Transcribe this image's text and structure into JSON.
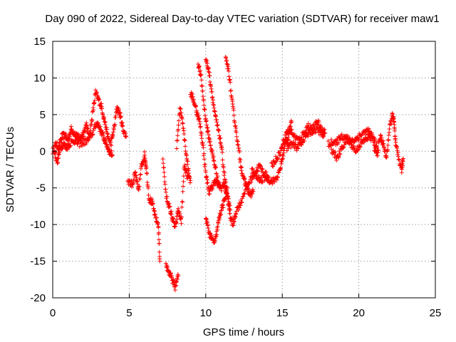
{
  "chart_data": {
    "type": "scatter",
    "title": "Day 090 of 2022, Sidereal Day-to-day VTEC variation (SDTVAR) for receiver maw1",
    "xlabel": "GPS time / hours",
    "ylabel": "SDTVAR / TECUs",
    "xlim": [
      0,
      25
    ],
    "ylim": [
      -20,
      15
    ],
    "xticks": [
      "0",
      "5",
      "10",
      "15",
      "20",
      "25"
    ],
    "yticks": [
      "-20",
      "-15",
      "-10",
      "-5",
      "0",
      "5",
      "10",
      "15"
    ],
    "grid": true,
    "marker": "+",
    "color": "#ff0000",
    "series": [
      {
        "name": "SDTVAR (approximate traces read from plot)",
        "segments": [
          [
            [
              0.0,
              0.0
            ],
            [
              0.2,
              1.0
            ],
            [
              0.4,
              0.5
            ],
            [
              0.6,
              2.0
            ],
            [
              0.8,
              2.2
            ],
            [
              1.0,
              1.5
            ],
            [
              1.2,
              3.0
            ],
            [
              1.4,
              2.5
            ],
            [
              1.6,
              2.0
            ],
            [
              1.8,
              1.8
            ],
            [
              2.0,
              2.5
            ],
            [
              2.2,
              3.5
            ],
            [
              2.4,
              2.0
            ],
            [
              2.6,
              5.0
            ],
            [
              2.8,
              8.0
            ],
            [
              3.0,
              7.0
            ],
            [
              3.2,
              6.0
            ],
            [
              3.4,
              4.0
            ],
            [
              3.6,
              2.0
            ],
            [
              3.8,
              1.0
            ],
            [
              4.0,
              3.0
            ],
            [
              4.2,
              6.0
            ],
            [
              4.4,
              5.0
            ],
            [
              4.6,
              3.0
            ],
            [
              4.8,
              2.0
            ]
          ],
          [
            [
              0.1,
              0.0
            ],
            [
              0.3,
              -1.5
            ],
            [
              0.5,
              0.5
            ],
            [
              0.7,
              1.0
            ],
            [
              0.9,
              0.5
            ],
            [
              1.1,
              1.0
            ],
            [
              1.4,
              1.5
            ],
            [
              1.7,
              1.0
            ],
            [
              2.0,
              1.2
            ],
            [
              2.3,
              1.5
            ],
            [
              2.6,
              2.5
            ],
            [
              2.9,
              4.0
            ],
            [
              3.1,
              3.0
            ],
            [
              3.3,
              2.0
            ],
            [
              3.5,
              1.0
            ],
            [
              3.7,
              0.0
            ],
            [
              3.9,
              -0.5
            ]
          ],
          [
            [
              4.9,
              -4.0
            ],
            [
              5.2,
              -4.5
            ],
            [
              5.4,
              -3.0
            ],
            [
              5.6,
              -5.5
            ],
            [
              5.8,
              -2.0
            ],
            [
              6.0,
              -0.5
            ],
            [
              6.1,
              -2.0
            ],
            [
              6.3,
              -6.5
            ],
            [
              6.5,
              -7.0
            ],
            [
              6.7,
              -9.0
            ],
            [
              6.9,
              -10.0
            ],
            [
              7.0,
              -15.0
            ]
          ],
          [
            [
              7.2,
              -1.0
            ],
            [
              7.4,
              -6.0
            ],
            [
              7.6,
              -7.5
            ],
            [
              7.8,
              -9.0
            ],
            [
              8.0,
              -10.5
            ],
            [
              8.2,
              -8.0
            ],
            [
              8.4,
              -9.5
            ],
            [
              8.6,
              -2.0
            ],
            [
              8.8,
              -3.5
            ],
            [
              9.0,
              -4.0
            ]
          ],
          [
            [
              7.4,
              -15.5
            ],
            [
              7.6,
              -16.5
            ],
            [
              7.8,
              -17.5
            ],
            [
              8.0,
              -18.5
            ],
            [
              8.2,
              -17.0
            ]
          ],
          [
            [
              8.1,
              0.5
            ],
            [
              8.3,
              6.0
            ],
            [
              8.5,
              4.0
            ],
            [
              8.7,
              0.0
            ],
            [
              8.9,
              -3.0
            ]
          ],
          [
            [
              9.0,
              8.0
            ],
            [
              9.2,
              7.0
            ],
            [
              9.4,
              5.5
            ],
            [
              9.6,
              4.0
            ],
            [
              9.8,
              1.0
            ],
            [
              10.0,
              -3.0
            ],
            [
              10.2,
              -5.5
            ],
            [
              10.4,
              -5.0
            ],
            [
              10.6,
              -4.0
            ],
            [
              10.8,
              -4.5
            ],
            [
              11.0,
              -5.0
            ],
            [
              11.2,
              -4.5
            ],
            [
              11.4,
              -6.0
            ],
            [
              11.6,
              -9.0
            ],
            [
              11.8,
              -10.0
            ],
            [
              12.0,
              -8.0
            ],
            [
              12.3,
              -7.0
            ],
            [
              12.6,
              -5.0
            ],
            [
              12.9,
              -4.0
            ],
            [
              13.2,
              -3.0
            ],
            [
              13.5,
              -2.0
            ],
            [
              13.8,
              -3.0
            ],
            [
              14.1,
              -3.5
            ]
          ],
          [
            [
              9.5,
              12.0
            ],
            [
              9.7,
              10.0
            ],
            [
              9.9,
              6.0
            ],
            [
              10.1,
              3.0
            ],
            [
              10.3,
              1.0
            ],
            [
              10.5,
              -1.0
            ],
            [
              10.7,
              -3.0
            ],
            [
              10.9,
              -5.0
            ]
          ],
          [
            [
              10.0,
              12.5
            ],
            [
              10.2,
              11.0
            ],
            [
              10.4,
              8.0
            ],
            [
              10.6,
              5.0
            ],
            [
              10.8,
              3.0
            ],
            [
              11.0,
              1.0
            ],
            [
              11.2,
              -3.0
            ],
            [
              11.4,
              -6.0
            ],
            [
              11.6,
              -8.0
            ]
          ],
          [
            [
              11.3,
              12.5
            ],
            [
              11.5,
              11.0
            ],
            [
              11.7,
              7.0
            ],
            [
              11.9,
              4.0
            ],
            [
              12.1,
              1.0
            ],
            [
              12.3,
              -2.0
            ],
            [
              12.5,
              -4.0
            ],
            [
              12.7,
              -5.0
            ],
            [
              12.9,
              -6.0
            ],
            [
              13.1,
              -5.5
            ]
          ],
          [
            [
              10.0,
              -9.0
            ],
            [
              10.2,
              -11.0
            ],
            [
              10.4,
              -12.0
            ],
            [
              10.6,
              -12.5
            ],
            [
              10.8,
              -10.0
            ],
            [
              11.0,
              -8.0
            ],
            [
              11.2,
              -7.0
            ],
            [
              11.4,
              -5.0
            ]
          ],
          [
            [
              13.0,
              -2.5
            ],
            [
              13.3,
              -3.5
            ],
            [
              13.6,
              -4.0
            ],
            [
              13.9,
              -3.5
            ],
            [
              14.2,
              -4.0
            ],
            [
              14.5,
              -4.0
            ],
            [
              14.8,
              -3.0
            ],
            [
              15.0,
              -1.0
            ],
            [
              15.2,
              1.0
            ],
            [
              15.4,
              2.0
            ],
            [
              15.6,
              4.0
            ]
          ],
          [
            [
              14.3,
              -2.0
            ],
            [
              14.6,
              -1.0
            ],
            [
              14.9,
              0.0
            ],
            [
              15.1,
              1.5
            ],
            [
              15.3,
              2.5
            ],
            [
              15.5,
              3.0
            ],
            [
              15.8,
              2.0
            ],
            [
              16.1,
              1.5
            ],
            [
              16.4,
              2.5
            ],
            [
              16.7,
              3.5
            ],
            [
              17.0,
              3.0
            ],
            [
              17.3,
              4.0
            ],
            [
              17.6,
              3.0
            ],
            [
              17.8,
              2.5
            ]
          ],
          [
            [
              15.3,
              0.5
            ],
            [
              15.6,
              1.0
            ],
            [
              15.9,
              0.5
            ],
            [
              16.2,
              1.0
            ],
            [
              16.5,
              2.0
            ],
            [
              16.8,
              2.5
            ],
            [
              17.1,
              3.0
            ],
            [
              17.4,
              2.8
            ],
            [
              17.7,
              2.0
            ]
          ],
          [
            [
              18.0,
              1.0
            ],
            [
              18.3,
              0.0
            ],
            [
              18.6,
              -1.0
            ],
            [
              18.9,
              0.5
            ],
            [
              19.2,
              1.5
            ],
            [
              19.5,
              1.0
            ],
            [
              19.8,
              0.0
            ],
            [
              20.1,
              1.0
            ],
            [
              20.4,
              1.5
            ],
            [
              20.7,
              2.0
            ],
            [
              21.0,
              1.5
            ],
            [
              21.2,
              0.5
            ]
          ],
          [
            [
              18.2,
              1.5
            ],
            [
              18.5,
              1.0
            ],
            [
              18.8,
              2.0
            ],
            [
              19.1,
              2.0
            ],
            [
              19.4,
              1.5
            ],
            [
              19.7,
              1.5
            ],
            [
              20.0,
              2.0
            ],
            [
              20.3,
              2.5
            ],
            [
              20.6,
              2.8
            ],
            [
              20.9,
              2.0
            ]
          ],
          [
            [
              21.0,
              0.5
            ],
            [
              21.2,
              -0.5
            ],
            [
              21.4,
              2.0
            ],
            [
              21.6,
              1.0
            ],
            [
              21.8,
              -1.0
            ],
            [
              22.0,
              3.0
            ],
            [
              22.2,
              5.0
            ],
            [
              22.3,
              4.0
            ],
            [
              22.4,
              1.0
            ],
            [
              22.6,
              -1.0
            ],
            [
              22.8,
              -2.5
            ],
            [
              22.9,
              -1.0
            ]
          ]
        ]
      }
    ]
  }
}
